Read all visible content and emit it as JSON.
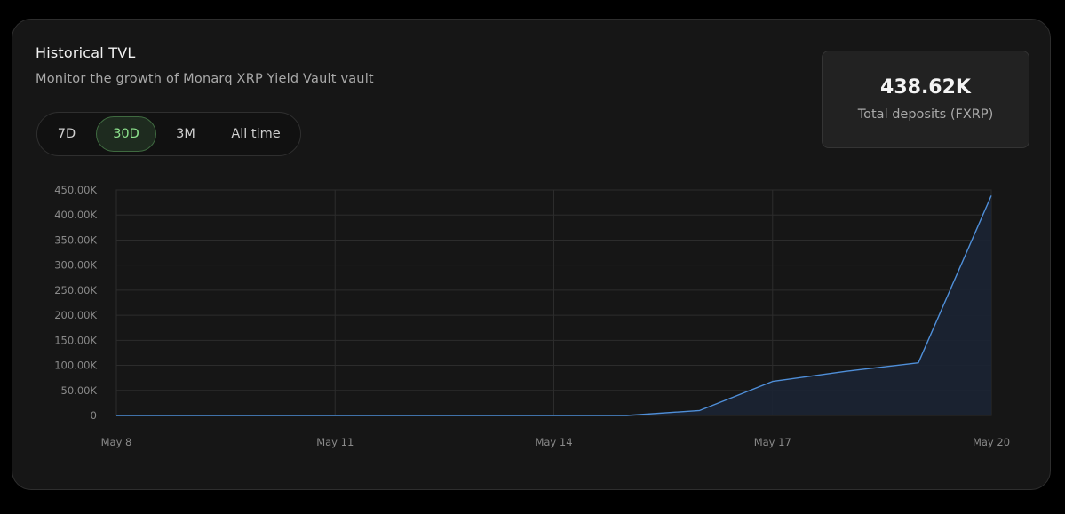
{
  "header": {
    "title": "Historical TVL",
    "subtitle": "Monitor the growth of Monarq XRP Yield Vault vault"
  },
  "range_tabs": [
    {
      "label": "7D",
      "active": false
    },
    {
      "label": "30D",
      "active": true
    },
    {
      "label": "3M",
      "active": false
    },
    {
      "label": "All time",
      "active": false
    }
  ],
  "stat": {
    "value": "438.62K",
    "label": "Total deposits (FXRP)"
  },
  "colors": {
    "line": "#4f8fd9",
    "area": "#1b2433",
    "grid": "#2c2c2c",
    "active_tab": "#8ee48e"
  },
  "chart_data": {
    "type": "area",
    "x": [
      "May 8",
      "May 9",
      "May 10",
      "May 11",
      "May 12",
      "May 13",
      "May 14",
      "May 15",
      "May 16",
      "May 17",
      "May 18",
      "May 19",
      "May 20"
    ],
    "series": [
      {
        "values": [
          0,
          0,
          0,
          0,
          0,
          0,
          0,
          0,
          10000,
          68000,
          88000,
          105000,
          438620
        ]
      }
    ],
    "x_tick_labels": [
      "May 8",
      "May 11",
      "May 14",
      "May 17",
      "May 20"
    ],
    "y_tick_labels": [
      "0",
      "50.00K",
      "100.00K",
      "150.00K",
      "200.00K",
      "250.00K",
      "300.00K",
      "350.00K",
      "400.00K",
      "450.00K"
    ],
    "ylim": [
      0,
      450000
    ],
    "grid": true
  }
}
